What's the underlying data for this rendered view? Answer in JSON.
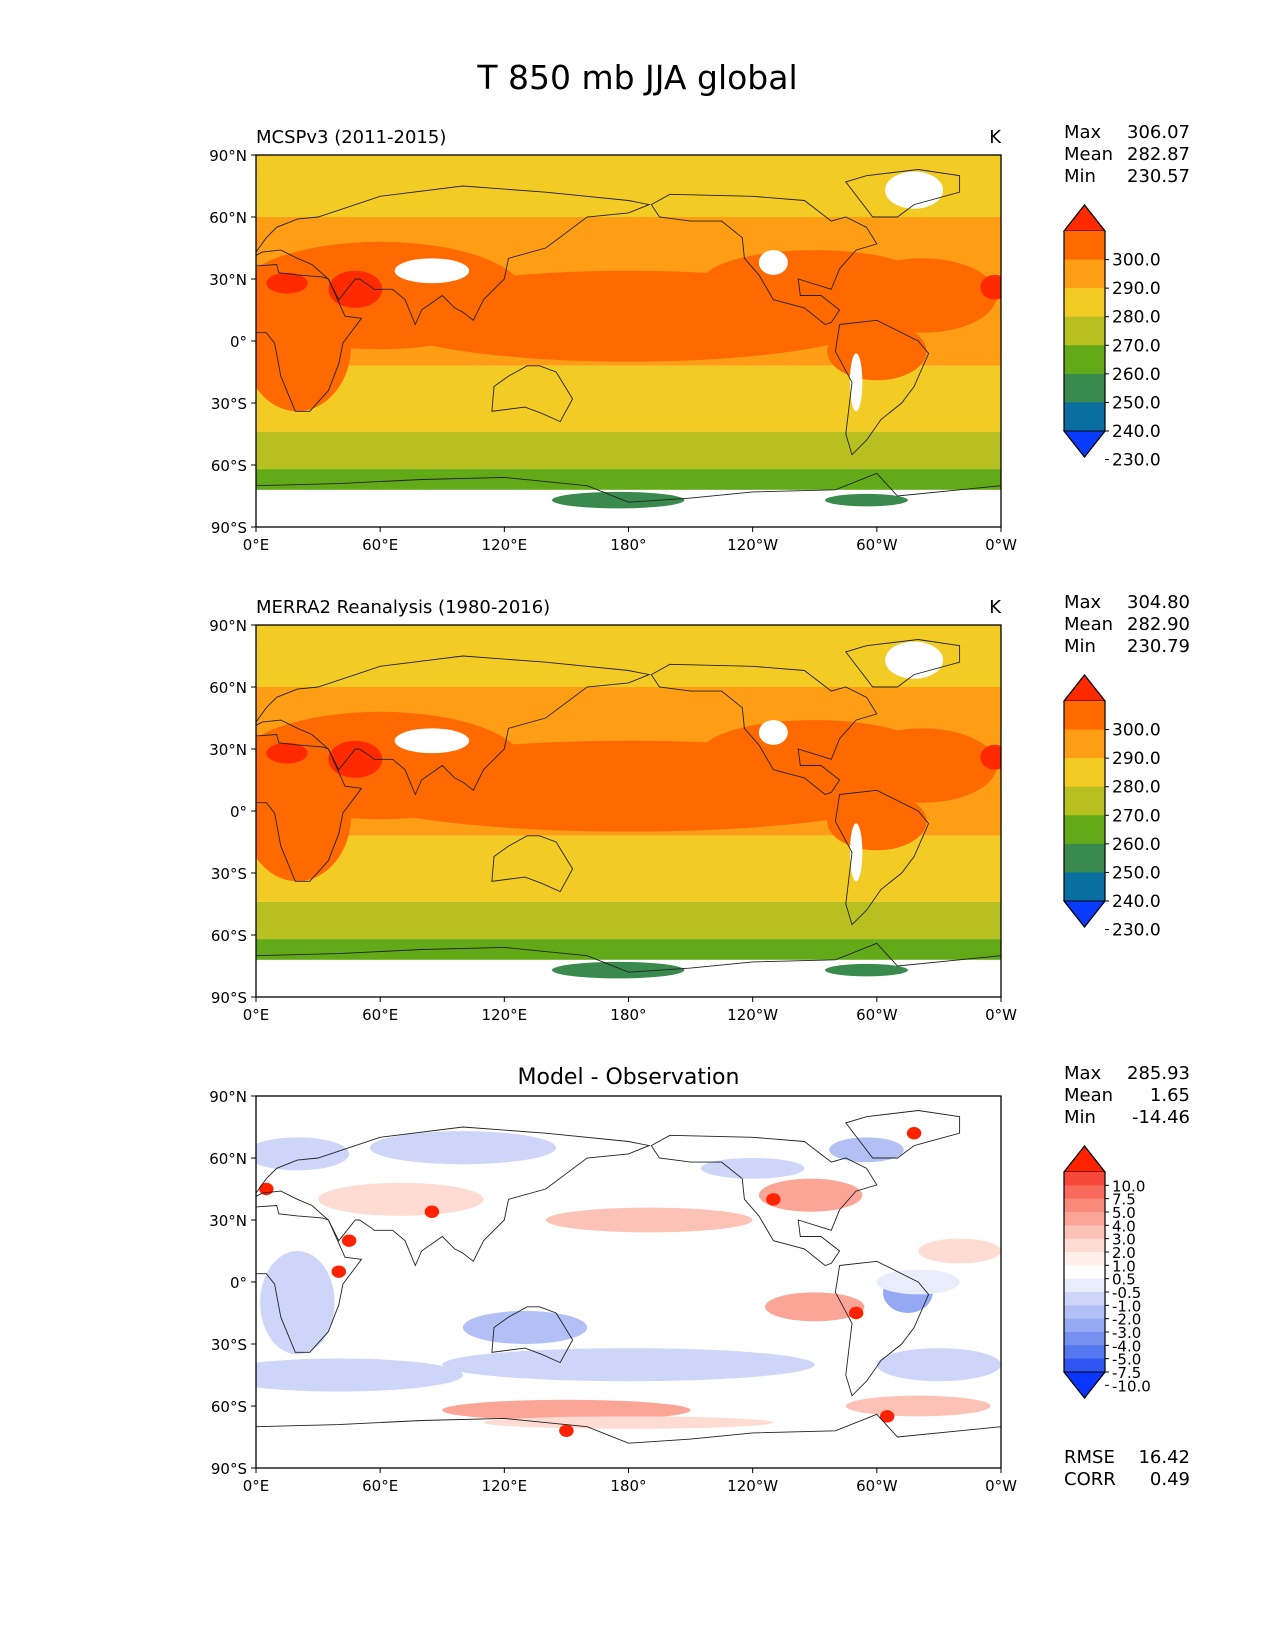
{
  "figure": {
    "title": "T 850 mb JJA global"
  },
  "axes": {
    "lat_ticks": [
      "90°N",
      "60°N",
      "30°N",
      "0°",
      "30°S",
      "60°S",
      "90°S"
    ],
    "lon_ticks": [
      "0°E",
      "60°E",
      "120°E",
      "180°",
      "120°W",
      "60°W",
      "0°W"
    ],
    "lon_range": [
      0,
      360
    ],
    "lat_range": [
      -90,
      90
    ]
  },
  "panels": [
    {
      "left_title": "MCSPv3 (2011-2015)",
      "center_title": "",
      "units": "K",
      "stats": [
        {
          "label": "Max",
          "value": "306.07"
        },
        {
          "label": "Mean",
          "value": "282.87"
        },
        {
          "label": "Min",
          "value": "230.57"
        }
      ],
      "colorbar": {
        "labels": [
          "300.0",
          "290.0",
          "280.0",
          "270.0",
          "260.0",
          "250.0",
          "240.0",
          "230.0"
        ],
        "colors": [
          "#ff2a00",
          "#ff6a00",
          "#ff9e15",
          "#f2cc25",
          "#b7c020",
          "#62aa18",
          "#3a8a4e",
          "#086fa0",
          "#0a3cff"
        ]
      }
    },
    {
      "left_title": "MERRA2 Reanalysis (1980-2016)",
      "center_title": "",
      "units": "K",
      "stats": [
        {
          "label": "Max",
          "value": "304.80"
        },
        {
          "label": "Mean",
          "value": "282.90"
        },
        {
          "label": "Min",
          "value": "230.79"
        }
      ],
      "colorbar": {
        "labels": [
          "300.0",
          "290.0",
          "280.0",
          "270.0",
          "260.0",
          "250.0",
          "240.0",
          "230.0"
        ],
        "colors": [
          "#ff2a00",
          "#ff6a00",
          "#ff9e15",
          "#f2cc25",
          "#b7c020",
          "#62aa18",
          "#3a8a4e",
          "#086fa0",
          "#0a3cff"
        ]
      }
    },
    {
      "left_title": "",
      "center_title": "Model - Observation",
      "units": "",
      "stats": [
        {
          "label": "Max",
          "value": "285.93"
        },
        {
          "label": "Mean",
          "value": "1.65"
        },
        {
          "label": "Min",
          "value": "-14.46"
        }
      ],
      "colorbar": {
        "labels": [
          "10.0",
          "7.5",
          "5.0",
          "4.0",
          "3.0",
          "2.0",
          "1.0",
          "0.5",
          "-0.5",
          "-1.0",
          "-2.0",
          "-3.0",
          "-4.0",
          "-5.0",
          "-7.5",
          "-10.0"
        ],
        "colors": [
          "#ff2200",
          "#f5473a",
          "#f76a5c",
          "#fa8a7a",
          "#fba597",
          "#fdc2b6",
          "#fedcd4",
          "#fff0ec",
          "#ffffff",
          "#e8ecfb",
          "#cdd6f9",
          "#b2c0f6",
          "#95a8f3",
          "#7690f0",
          "#5476ee",
          "#2f56f0",
          "#0a36ff"
        ]
      },
      "extra_stats": [
        {
          "label": "RMSE",
          "value": "16.42"
        },
        {
          "label": "CORR",
          "value": "0.49"
        }
      ]
    }
  ]
}
